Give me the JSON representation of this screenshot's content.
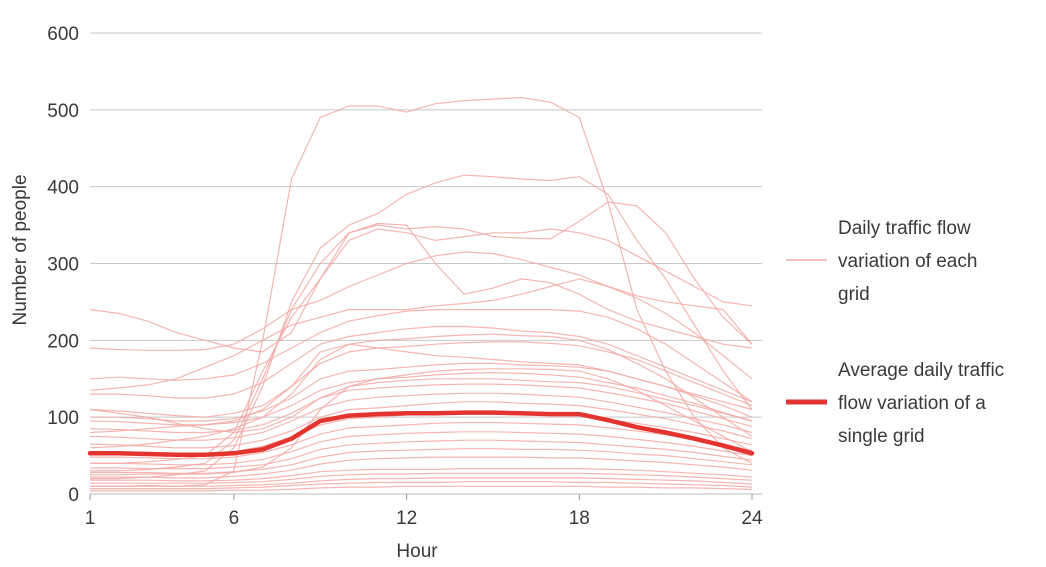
{
  "chart_data": {
    "type": "line",
    "xlabel": "Hour",
    "ylabel": "Number of people",
    "xlim": [
      1,
      24
    ],
    "ylim": [
      0,
      600
    ],
    "xticks": [
      "1",
      "6",
      "12",
      "18",
      "24"
    ],
    "yticks": [
      "0",
      "100",
      "200",
      "300",
      "400",
      "500",
      "600"
    ],
    "grid": "horizontal",
    "legend_position": "right",
    "colors": {
      "grid_series": "#f2a9a5",
      "average_series": "#e3342f",
      "gridline": "#c8c8c8"
    },
    "legend": [
      {
        "label_lines": [
          "Daily traffic flow",
          "variation of each",
          "grid"
        ],
        "style": "thin"
      },
      {
        "label_lines": [
          "Average daily traffic",
          "flow variation of a",
          "single grid"
        ],
        "style": "thick"
      }
    ],
    "x": [
      1,
      2,
      3,
      4,
      5,
      6,
      7,
      8,
      9,
      10,
      11,
      12,
      13,
      14,
      15,
      16,
      17,
      18,
      19,
      20,
      21,
      22,
      23,
      24
    ],
    "average": {
      "values": [
        53,
        53,
        52,
        51,
        51,
        53,
        58,
        72,
        95,
        102,
        104,
        105,
        105,
        106,
        106,
        105,
        104,
        104,
        96,
        87,
        80,
        72,
        63,
        53
      ]
    },
    "grids": [
      [
        10,
        10,
        11,
        10,
        12,
        30,
        200,
        410,
        490,
        505,
        505,
        497,
        508,
        512,
        514,
        516,
        510,
        490,
        380,
        240,
        160,
        100,
        60,
        40
      ],
      [
        20,
        20,
        22,
        25,
        30,
        60,
        140,
        250,
        320,
        350,
        365,
        390,
        405,
        415,
        413,
        410,
        408,
        413,
        390,
        330,
        280,
        220,
        160,
        110
      ],
      [
        30,
        30,
        32,
        35,
        40,
        70,
        150,
        240,
        300,
        340,
        350,
        345,
        348,
        345,
        335,
        333,
        332,
        355,
        380,
        375,
        340,
        280,
        230,
        195
      ],
      [
        40,
        40,
        42,
        45,
        50,
        80,
        160,
        230,
        280,
        330,
        345,
        340,
        330,
        335,
        340,
        340,
        345,
        340,
        330,
        310,
        290,
        270,
        250,
        245
      ],
      [
        240,
        235,
        225,
        210,
        200,
        190,
        185,
        210,
        280,
        340,
        352,
        350,
        300,
        260,
        268,
        280,
        275,
        260,
        240,
        225,
        215,
        205,
        195,
        190
      ],
      [
        190,
        188,
        187,
        187,
        188,
        195,
        215,
        240,
        252,
        270,
        285,
        300,
        310,
        315,
        313,
        305,
        295,
        285,
        270,
        258,
        250,
        245,
        240,
        195
      ],
      [
        135,
        138,
        142,
        150,
        165,
        180,
        200,
        220,
        230,
        240,
        240,
        240,
        245,
        248,
        252,
        260,
        270,
        280,
        270,
        255,
        235,
        210,
        180,
        150
      ],
      [
        150,
        152,
        150,
        148,
        150,
        155,
        170,
        190,
        210,
        225,
        232,
        238,
        240,
        240,
        240,
        240,
        240,
        238,
        230,
        215,
        195,
        170,
        145,
        120
      ],
      [
        130,
        130,
        128,
        125,
        125,
        130,
        145,
        170,
        195,
        205,
        210,
        215,
        218,
        218,
        216,
        212,
        210,
        205,
        195,
        180,
        165,
        150,
        135,
        120
      ],
      [
        110,
        108,
        105,
        102,
        100,
        105,
        115,
        140,
        170,
        185,
        190,
        192,
        195,
        197,
        198,
        198,
        196,
        193,
        185,
        175,
        160,
        145,
        130,
        115
      ],
      [
        100,
        100,
        98,
        95,
        95,
        98,
        108,
        125,
        150,
        160,
        162,
        165,
        168,
        170,
        170,
        168,
        167,
        165,
        160,
        150,
        140,
        128,
        115,
        100
      ],
      [
        95,
        94,
        92,
        90,
        90,
        93,
        100,
        115,
        135,
        145,
        150,
        152,
        155,
        157,
        158,
        157,
        155,
        152,
        145,
        138,
        128,
        118,
        106,
        95
      ],
      [
        85,
        84,
        82,
        80,
        80,
        83,
        90,
        105,
        125,
        135,
        138,
        140,
        142,
        143,
        143,
        142,
        140,
        138,
        132,
        125,
        118,
        108,
        98,
        88
      ],
      [
        75,
        74,
        72,
        70,
        70,
        73,
        80,
        95,
        112,
        122,
        126,
        128,
        130,
        131,
        131,
        130,
        128,
        126,
        120,
        113,
        106,
        98,
        90,
        80
      ],
      [
        65,
        64,
        62,
        60,
        60,
        63,
        70,
        82,
        100,
        110,
        112,
        115,
        118,
        120,
        120,
        118,
        117,
        115,
        110,
        104,
        98,
        90,
        82,
        72
      ],
      [
        55,
        55,
        54,
        52,
        52,
        55,
        62,
        74,
        90,
        98,
        100,
        103,
        105,
        106,
        106,
        105,
        104,
        102,
        97,
        92,
        86,
        80,
        72,
        64
      ],
      [
        48,
        48,
        47,
        46,
        46,
        48,
        54,
        64,
        78,
        86,
        88,
        90,
        92,
        93,
        93,
        92,
        91,
        90,
        86,
        82,
        77,
        71,
        64,
        57
      ],
      [
        40,
        40,
        39,
        38,
        38,
        40,
        45,
        55,
        68,
        75,
        77,
        79,
        80,
        81,
        81,
        80,
        79,
        78,
        75,
        71,
        67,
        62,
        56,
        50
      ],
      [
        34,
        34,
        33,
        33,
        33,
        35,
        38,
        46,
        58,
        64,
        66,
        68,
        69,
        70,
        70,
        69,
        68,
        67,
        64,
        61,
        58,
        54,
        49,
        44
      ],
      [
        28,
        28,
        28,
        27,
        27,
        29,
        32,
        38,
        48,
        54,
        56,
        57,
        58,
        59,
        59,
        58,
        58,
        57,
        55,
        52,
        50,
        46,
        42,
        38
      ],
      [
        22,
        22,
        22,
        21,
        21,
        23,
        26,
        31,
        39,
        44,
        46,
        47,
        48,
        48,
        48,
        48,
        47,
        47,
        45,
        43,
        41,
        38,
        35,
        31
      ],
      [
        18,
        18,
        18,
        17,
        17,
        18,
        20,
        24,
        29,
        31,
        32,
        32,
        32,
        33,
        33,
        33,
        33,
        33,
        32,
        31,
        29,
        27,
        25,
        22
      ],
      [
        14,
        14,
        14,
        14,
        14,
        15,
        16,
        19,
        23,
        25,
        26,
        26,
        27,
        27,
        27,
        27,
        27,
        27,
        26,
        25,
        24,
        22,
        20,
        18
      ],
      [
        10,
        10,
        10,
        10,
        10,
        11,
        12,
        14,
        17,
        19,
        20,
        20,
        21,
        21,
        21,
        21,
        21,
        21,
        20,
        19,
        18,
        17,
        15,
        13
      ],
      [
        7,
        7,
        7,
        7,
        7,
        8,
        9,
        11,
        13,
        14,
        15,
        15,
        15,
        16,
        16,
        16,
        16,
        15,
        15,
        14,
        13,
        12,
        11,
        9
      ],
      [
        4,
        4,
        4,
        4,
        4,
        5,
        5,
        6,
        8,
        9,
        9,
        10,
        10,
        10,
        10,
        10,
        10,
        10,
        9,
        9,
        8,
        8,
        7,
        6
      ],
      [
        110,
        105,
        100,
        92,
        85,
        80,
        85,
        100,
        125,
        140,
        145,
        148,
        150,
        150,
        150,
        148,
        146,
        145,
        140,
        132,
        123,
        115,
        105,
        95
      ],
      [
        60,
        62,
        65,
        70,
        75,
        85,
        100,
        130,
        175,
        195,
        200,
        202,
        205,
        207,
        208,
        206,
        205,
        200,
        188,
        170,
        150,
        125,
        100,
        75
      ],
      [
        80,
        82,
        85,
        88,
        90,
        95,
        110,
        140,
        185,
        195,
        190,
        185,
        180,
        178,
        175,
        172,
        170,
        168,
        160,
        150,
        140,
        130,
        120,
        110
      ],
      [
        25,
        25,
        26,
        26,
        26,
        28,
        35,
        60,
        110,
        140,
        150,
        155,
        160,
        162,
        163,
        163,
        162,
        160,
        150,
        135,
        115,
        95,
        75,
        55
      ]
    ]
  }
}
